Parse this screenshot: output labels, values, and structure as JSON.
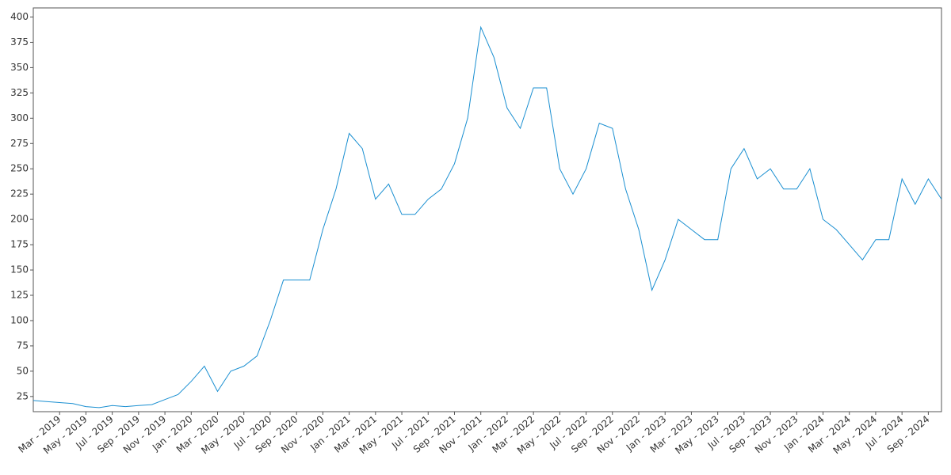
{
  "chart_data": {
    "type": "line",
    "x": [
      "2019-01",
      "2019-02",
      "2019-03",
      "2019-04",
      "2019-05",
      "2019-06",
      "2019-07",
      "2019-08",
      "2019-09",
      "2019-10",
      "2019-11",
      "2019-12",
      "2020-01",
      "2020-02",
      "2020-03",
      "2020-04",
      "2020-05",
      "2020-06",
      "2020-07",
      "2020-08",
      "2020-09",
      "2020-10",
      "2020-11",
      "2020-12",
      "2021-01",
      "2021-02",
      "2021-03",
      "2021-04",
      "2021-05",
      "2021-06",
      "2021-07",
      "2021-08",
      "2021-09",
      "2021-10",
      "2021-11",
      "2021-12",
      "2022-01",
      "2022-02",
      "2022-03",
      "2022-04",
      "2022-05",
      "2022-06",
      "2022-07",
      "2022-08",
      "2022-09",
      "2022-10",
      "2022-11",
      "2022-12",
      "2023-01",
      "2023-02",
      "2023-03",
      "2023-04",
      "2023-05",
      "2023-06",
      "2023-07",
      "2023-08",
      "2023-09",
      "2023-10",
      "2023-11",
      "2023-12",
      "2024-01",
      "2024-02",
      "2024-03",
      "2024-04",
      "2024-05",
      "2024-06",
      "2024-07",
      "2024-08",
      "2024-09",
      "2024-10"
    ],
    "series": [
      {
        "color": "#1a8fd1",
        "values": [
          21,
          20,
          19,
          18,
          15,
          14,
          16,
          15,
          16,
          17,
          22,
          27,
          40,
          55,
          30,
          50,
          55,
          65,
          100,
          140,
          140,
          140,
          190,
          230,
          285,
          270,
          220,
          235,
          205,
          205,
          220,
          230,
          255,
          300,
          390,
          360,
          310,
          290,
          330,
          330,
          250,
          225,
          250,
          295,
          290,
          230,
          190,
          130,
          160,
          200,
          190,
          180,
          180,
          250,
          270,
          240,
          250,
          230,
          230,
          250,
          200,
          190,
          175,
          160,
          180,
          180,
          240,
          215,
          240,
          220
        ]
      }
    ],
    "xlim": [
      "2019-01",
      "2024-10"
    ],
    "xticks": [
      {
        "value": "2019-03",
        "label": "Mar - 2019"
      },
      {
        "value": "2019-05",
        "label": "May - 2019"
      },
      {
        "value": "2019-07",
        "label": "Jul - 2019"
      },
      {
        "value": "2019-09",
        "label": "Sep - 2019"
      },
      {
        "value": "2019-11",
        "label": "Nov - 2019"
      },
      {
        "value": "2020-01",
        "label": "Jan - 2020"
      },
      {
        "value": "2020-03",
        "label": "Mar - 2020"
      },
      {
        "value": "2020-05",
        "label": "May - 2020"
      },
      {
        "value": "2020-07",
        "label": "Jul - 2020"
      },
      {
        "value": "2020-09",
        "label": "Sep - 2020"
      },
      {
        "value": "2020-11",
        "label": "Nov - 2020"
      },
      {
        "value": "2021-01",
        "label": "Jan - 2021"
      },
      {
        "value": "2021-03",
        "label": "Mar - 2021"
      },
      {
        "value": "2021-05",
        "label": "May - 2021"
      },
      {
        "value": "2021-07",
        "label": "Jul - 2021"
      },
      {
        "value": "2021-09",
        "label": "Sep - 2021"
      },
      {
        "value": "2021-11",
        "label": "Nov - 2021"
      },
      {
        "value": "2022-01",
        "label": "Jan - 2022"
      },
      {
        "value": "2022-03",
        "label": "Mar - 2022"
      },
      {
        "value": "2022-05",
        "label": "May - 2022"
      },
      {
        "value": "2022-07",
        "label": "Jul - 2022"
      },
      {
        "value": "2022-09",
        "label": "Sep - 2022"
      },
      {
        "value": "2022-11",
        "label": "Nov - 2022"
      },
      {
        "value": "2023-01",
        "label": "Jan - 2023"
      },
      {
        "value": "2023-03",
        "label": "Mar - 2023"
      },
      {
        "value": "2023-05",
        "label": "May - 2023"
      },
      {
        "value": "2023-07",
        "label": "Jul - 2023"
      },
      {
        "value": "2023-09",
        "label": "Sep - 2023"
      },
      {
        "value": "2023-11",
        "label": "Nov - 2023"
      },
      {
        "value": "2024-01",
        "label": "Jan - 2024"
      },
      {
        "value": "2024-03",
        "label": "Mar - 2024"
      },
      {
        "value": "2024-05",
        "label": "May - 2024"
      },
      {
        "value": "2024-07",
        "label": "Jul - 2024"
      },
      {
        "value": "2024-09",
        "label": "Sep - 2024"
      }
    ],
    "ylim": [
      10,
      409
    ],
    "yticks": [
      25,
      50,
      75,
      100,
      125,
      150,
      175,
      200,
      225,
      250,
      275,
      300,
      325,
      350,
      375,
      400
    ]
  }
}
